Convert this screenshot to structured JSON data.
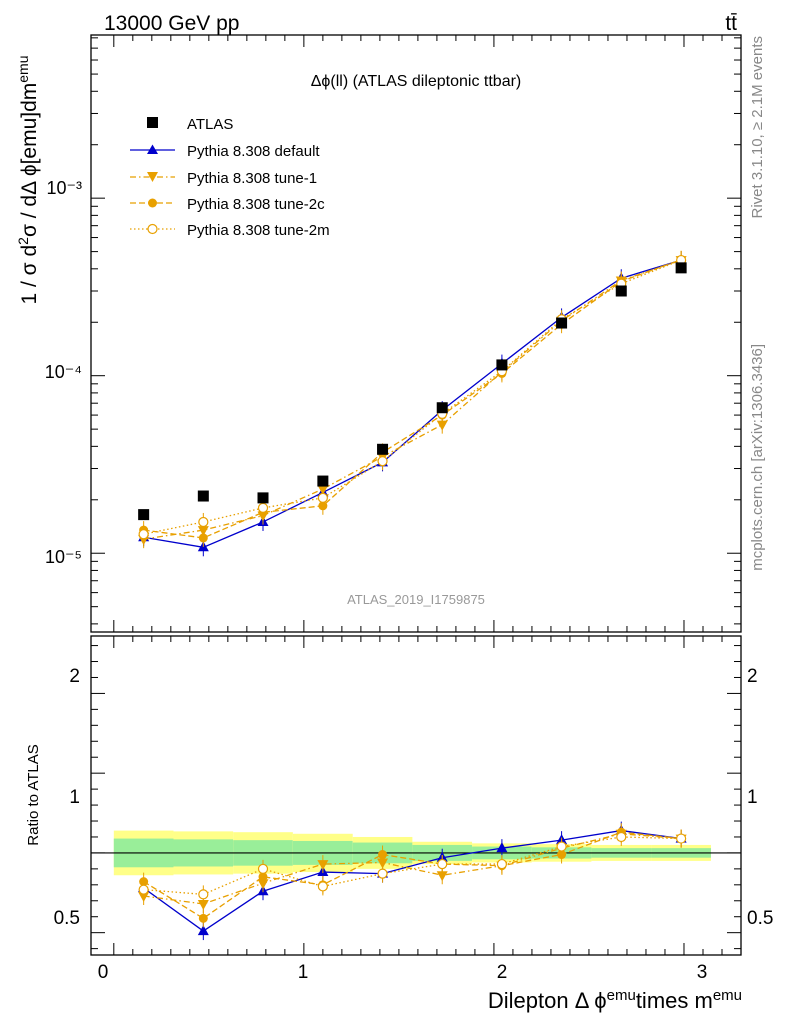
{
  "header": {
    "energy": "13000 GeV pp",
    "process": "tt̄"
  },
  "side": {
    "rivet": "Rivet 3.1.10, ≥ 2.1M events",
    "source": "mcplots.cern.ch [arXiv:1306.3436]"
  },
  "chart_data": [
    {
      "type": "scatter",
      "title": "Δϕ(ll) (ATLAS dileptonic ttbar)",
      "watermark": "ATLAS_2019_I1759875",
      "ylabel": "1 / σ  d²σ / dΔ ϕ[emu]dm^emu",
      "ylabel_main": "1 / σ  d",
      "ylabel_tail": "σ / dΔ ϕ[emu]dm",
      "ylabel_sup2": "2",
      "ylabel_supemu": "emu",
      "yscale": "log",
      "ylim": [
        3.6e-06,
        0.0083
      ],
      "xlim": [
        -0.12,
        3.3
      ],
      "y_tick_labels": [
        "10⁻⁵",
        "10⁻⁴",
        "10⁻³"
      ],
      "x": [
        0.157,
        0.471,
        0.785,
        1.1,
        1.414,
        1.728,
        2.042,
        2.356,
        2.67,
        2.985
      ],
      "series": [
        {
          "name": "ATLAS",
          "color": "#000000",
          "marker": "square",
          "values": [
            1.65e-05,
            2.1e-05,
            2.05e-05,
            2.55e-05,
            3.85e-05,
            6.6e-05,
            0.000115,
            0.000198,
            0.0003,
            0.000405
          ]
        },
        {
          "name": "Pythia 8.308 default",
          "color": "#0000cc",
          "marker": "triangle-up",
          "line": "solid",
          "values": [
            1.23e-05,
            1.08e-05,
            1.5e-05,
            2.2e-05,
            3.25e-05,
            6.4e-05,
            0.000117,
            0.000213,
            0.000354,
            0.000448
          ]
        },
        {
          "name": "Pythia 8.308 tune-1",
          "color": "#e8a000",
          "marker": "triangle-down",
          "line": "dashdot",
          "values": [
            1.2e-05,
            1.35e-05,
            1.63e-05,
            2.3e-05,
            3.5e-05,
            5.3e-05,
            0.000105,
            0.000204,
            0.000344,
            0.000448
          ]
        },
        {
          "name": "Pythia 8.308 tune-2c",
          "color": "#e8a000",
          "marker": "circle",
          "line": "dashed",
          "values": [
            1.35e-05,
            1.22e-05,
            1.7e-05,
            1.85e-05,
            3.7e-05,
            6e-05,
            0.000103,
            0.000195,
            0.00034,
            0.00045
          ]
        },
        {
          "name": "Pythia 8.308 tune-2m",
          "color": "#e8a000",
          "marker": "open-circle",
          "line": "dotted",
          "values": [
            1.28e-05,
            1.5e-05,
            1.8e-05,
            2.05e-05,
            3.3e-05,
            6.1e-05,
            0.000106,
            0.000208,
            0.00033,
            0.000448
          ]
        }
      ]
    },
    {
      "type": "scatter",
      "ylabel": "Ratio to ATLAS",
      "xlabel": "Dilepton Δ ϕ^emu times m^emu",
      "xlabel_a": "Dilepton Δ ϕ",
      "xlabel_b": "emu",
      "xlabel_c": "times m",
      "xlabel_d": "emu",
      "ylim": [
        0.36,
        2.36
      ],
      "xlim": [
        -0.12,
        3.3
      ],
      "x_tick_labels": [
        "0",
        "1",
        "2",
        "3"
      ],
      "y_tick_labels": [
        "0.5",
        "1",
        "2"
      ],
      "x": [
        0.157,
        0.471,
        0.785,
        1.1,
        1.414,
        1.728,
        2.042,
        2.356,
        2.67,
        2.985
      ],
      "bin_edges": [
        0,
        0.314,
        0.628,
        0.942,
        1.257,
        1.571,
        1.885,
        2.199,
        2.513,
        2.827,
        3.142
      ],
      "band_inner": [
        0.09,
        0.085,
        0.08,
        0.075,
        0.065,
        0.05,
        0.04,
        0.035,
        0.03,
        0.03
      ],
      "band_outer": [
        0.14,
        0.135,
        0.13,
        0.12,
        0.1,
        0.07,
        0.06,
        0.055,
        0.05,
        0.05
      ],
      "series": [
        {
          "name": "Pythia 8.308 default",
          "color": "#0000cc",
          "marker": "triangle-up",
          "line": "solid",
          "values": [
            0.78,
            0.51,
            0.76,
            0.88,
            0.87,
            0.97,
            1.03,
            1.08,
            1.14,
            1.09
          ]
        },
        {
          "name": "Pythia 8.308 tune-1",
          "color": "#e8a000",
          "marker": "triangle-down",
          "line": "dashdot",
          "values": [
            0.73,
            0.68,
            0.81,
            0.93,
            0.94,
            0.86,
            0.92,
            1.03,
            1.12,
            1.09
          ]
        },
        {
          "name": "Pythia 8.308 tune-2c",
          "color": "#e8a000",
          "marker": "circle",
          "line": "dashed",
          "values": [
            0.82,
            0.59,
            0.85,
            0.8,
            0.99,
            0.93,
            0.92,
            0.99,
            1.13,
            1.09
          ]
        },
        {
          "name": "Pythia 8.308 tune-2m",
          "color": "#e8a000",
          "marker": "open-circle",
          "line": "dotted",
          "values": [
            0.77,
            0.74,
            0.9,
            0.79,
            0.87,
            0.93,
            0.93,
            1.04,
            1.1,
            1.09
          ]
        }
      ]
    }
  ]
}
